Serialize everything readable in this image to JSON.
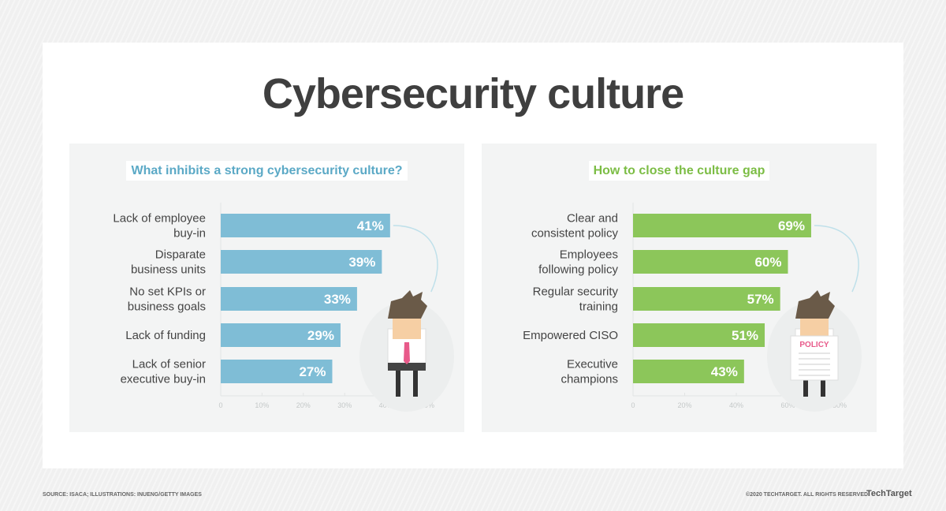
{
  "title": "Cybersecurity culture",
  "footer": {
    "source": "SOURCE: ISACA; ILLUSTRATIONS: INUENG/GETTY IMAGES",
    "copyright": "©2020 TECHTARGET. ALL RIGHTS RESERVED",
    "brand": "TechTarget"
  },
  "illustration": {
    "policy_label": "POLICY"
  },
  "chart_data": [
    {
      "type": "bar",
      "orientation": "horizontal",
      "title": "What inhibits a strong cybersecurity culture?",
      "categories": [
        [
          "Lack of employee",
          "buy-in"
        ],
        [
          "Disparate",
          "business units"
        ],
        [
          "No set KPIs or",
          "business goals"
        ],
        [
          "Lack of funding"
        ],
        [
          "Lack of senior",
          "executive buy-in"
        ]
      ],
      "values": [
        41,
        39,
        33,
        29,
        27
      ],
      "data_labels": [
        "41%",
        "39%",
        "33%",
        "29%",
        "27%"
      ],
      "xlim": [
        0,
        50
      ],
      "ticks": [
        "0",
        "10%",
        "20%",
        "30%",
        "40%",
        "50%"
      ],
      "color": "#7fbdd6",
      "title_color": "#5ba9c6"
    },
    {
      "type": "bar",
      "orientation": "horizontal",
      "title": "How to close the culture gap",
      "categories": [
        [
          "Clear and",
          "consistent policy"
        ],
        [
          "Employees",
          "following policy"
        ],
        [
          "Regular security",
          "training"
        ],
        [
          "Empowered CISO"
        ],
        [
          "Executive",
          "champions"
        ]
      ],
      "values": [
        69,
        60,
        57,
        51,
        43
      ],
      "data_labels": [
        "69%",
        "60%",
        "57%",
        "51%",
        "43%"
      ],
      "xlim": [
        0,
        80
      ],
      "ticks": [
        "0",
        "20%",
        "40%",
        "60%",
        "80%"
      ],
      "color": "#8cc65a",
      "title_color": "#7cbd45"
    }
  ]
}
